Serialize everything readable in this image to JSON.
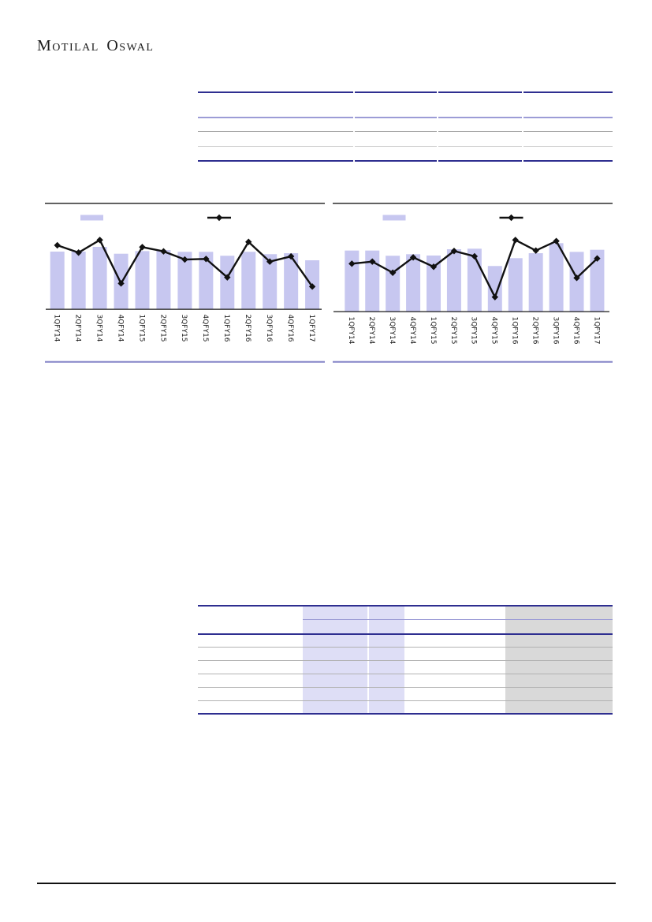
{
  "logo": {
    "text": "Motilal Oswal"
  },
  "colors": {
    "bar_fill": "#c7c7f0",
    "line_stroke": "#111111",
    "chart_frame_top": "#1a1a1a",
    "chart_bottom_rule": "#8d8dcb",
    "axis_label": "#1a1a1a",
    "table_rule_dark": "#2e2e90",
    "table_rule_purple": "#9c9cd6",
    "table_rule_gray": "#8f8f8f",
    "table_rule_light_gray": "#c9c9c9",
    "bottom_table_row_rule": "#b2b2b2",
    "lavender_highlight_block": "#dedef6",
    "gray_highlight_block": "#d9d9d9",
    "footer_rule": "#111111"
  },
  "chart_data": [
    {
      "type": "bar",
      "subtype": "bars-with-line-overlay",
      "categories": [
        "1QFY14",
        "2QFY14",
        "3QFY14",
        "4QFY14",
        "1QFY15",
        "2QFY15",
        "3QFY15",
        "4QFY15",
        "1QFY16",
        "2QFY16",
        "3QFY16",
        "4QFY16",
        "1QFY17"
      ],
      "series": [
        {
          "name": "bar-series",
          "type": "bar",
          "values_pct_of_plot_height": [
            75.9,
            75.9,
            82.2,
            73.1,
            76.6,
            78.0,
            75.6,
            75.6,
            70.4,
            75.6,
            72.5,
            73.8,
            64.4
          ]
        },
        {
          "name": "line-series",
          "type": "line",
          "values_pct_of_plot_height": [
            84.3,
            74.6,
            91.3,
            33.7,
            81.9,
            76.2,
            65.4,
            66.2,
            41.7,
            88.8,
            62.6,
            69.6,
            29.5
          ]
        }
      ],
      "legend": {
        "position": "top",
        "entries": [
          "bar-swatch",
          "line-marker"
        ],
        "labels_visible": false
      },
      "axis": {
        "x_labels_rotation_deg": 90,
        "y_axis_visible": false,
        "gridlines": false
      }
    },
    {
      "type": "bar",
      "subtype": "bars-with-line-overlay",
      "categories": [
        "1QFY14",
        "2QFY14",
        "3QFY14",
        "4QFY14",
        "1QFY15",
        "2QFY15",
        "3QFY15",
        "4QFY15",
        "1QFY16",
        "2QFY16",
        "3QFY16",
        "4QFY16",
        "1QFY17"
      ],
      "series": [
        {
          "name": "bar-series",
          "type": "bar",
          "values_pct_of_plot_height": [
            78.0,
            78.0,
            71.3,
            73.3,
            71.6,
            79.7,
            80.4,
            58.1,
            68.2,
            74.6,
            87.5,
            76.3,
            79.0
          ]
        },
        {
          "name": "line-series",
          "type": "line",
          "values_pct_of_plot_height": [
            61.1,
            63.8,
            49.5,
            69.2,
            57.1,
            77.4,
            70.6,
            18.1,
            91.6,
            78.0,
            90.2,
            42.8,
            67.8
          ]
        }
      ],
      "legend": {
        "position": "top",
        "entries": [
          "bar-swatch",
          "line-marker"
        ],
        "labels_visible": false
      },
      "axis": {
        "x_labels_rotation_deg": 90,
        "y_axis_visible": false,
        "gridlines": false
      }
    }
  ]
}
